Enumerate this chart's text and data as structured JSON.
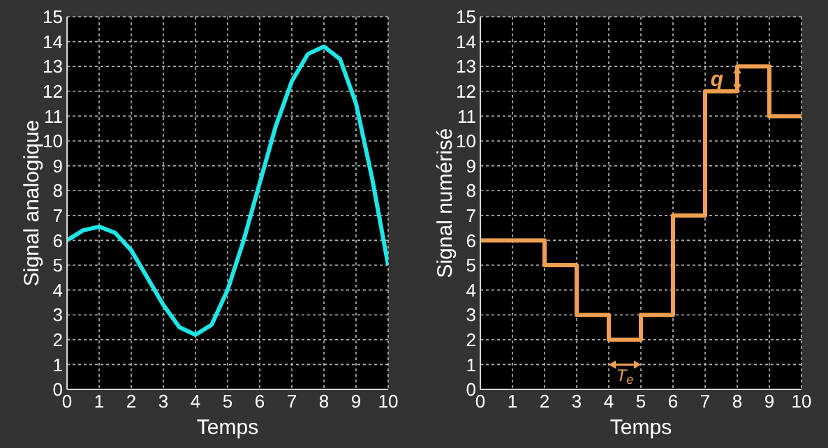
{
  "chart_data": [
    {
      "type": "line",
      "xlabel": "Temps",
      "ylabel": "Signal analogique",
      "xlim": [
        0,
        10
      ],
      "xticks": [
        0,
        1,
        2,
        3,
        4,
        5,
        6,
        7,
        8,
        9,
        10
      ],
      "ylim": [
        0,
        15
      ],
      "yticks": [
        0,
        1,
        2,
        3,
        4,
        5,
        6,
        7,
        8,
        9,
        10,
        11,
        12,
        13,
        14,
        15
      ],
      "grid": true,
      "marker": "none",
      "line_style": "solid",
      "x": [
        0,
        0.5,
        1,
        1.5,
        2,
        2.5,
        3,
        3.5,
        4,
        4.5,
        5,
        5.5,
        6,
        6.5,
        7,
        7.5,
        8,
        8.5,
        9,
        9.5,
        10
      ],
      "series": [
        {
          "color": "#1ee6e6",
          "values": [
            6,
            6.4,
            6.55,
            6.3,
            5.6,
            4.5,
            3.4,
            2.5,
            2.2,
            2.6,
            4,
            6,
            8.3,
            10.6,
            12.4,
            13.5,
            13.8,
            13.3,
            11.5,
            8.5,
            5
          ]
        }
      ]
    },
    {
      "type": "step",
      "xlabel": "Temps",
      "ylabel": "Signal numérisé",
      "xlim": [
        0,
        10
      ],
      "xticks": [
        0,
        1,
        2,
        3,
        4,
        5,
        6,
        7,
        8,
        9,
        10
      ],
      "ylim": [
        0,
        15
      ],
      "yticks": [
        0,
        1,
        2,
        3,
        4,
        5,
        6,
        7,
        8,
        9,
        10,
        11,
        12,
        13,
        14,
        15
      ],
      "grid": true,
      "marker": "none",
      "line_style": "solid",
      "x": [
        0,
        1,
        2,
        3,
        4,
        5,
        6,
        7,
        8,
        9,
        10
      ],
      "series": [
        {
          "color": "#f0a050",
          "values": [
            6,
            6,
            5,
            3,
            2,
            3,
            7,
            12,
            13,
            11,
            11
          ]
        }
      ],
      "annotations": [
        "q",
        "T$_{e}$"
      ]
    }
  ]
}
